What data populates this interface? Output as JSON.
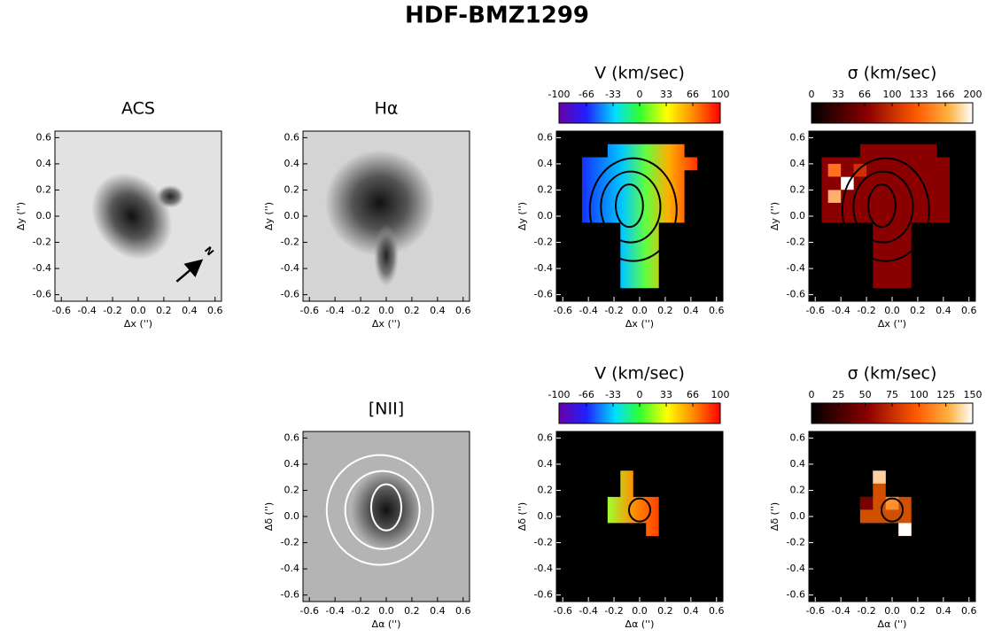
{
  "title": "HDF-BMZ1299",
  "chart_data": [
    {
      "type": "image",
      "title": "ACS",
      "colormap": "gray",
      "annotation": "N",
      "xlabel": "Δx ('')",
      "ylabel": "Δy ('')",
      "xlim": [
        -0.65,
        0.65
      ],
      "ylim": [
        -0.65,
        0.65
      ],
      "xticks": [
        -0.6,
        -0.4,
        -0.2,
        {
          "value": 0,
          "label": "0.0"
        },
        0.2,
        0.4,
        0.6
      ],
      "yticks": [
        -0.6,
        -0.4,
        -0.2,
        {
          "value": 0,
          "label": "0.0"
        },
        0.2,
        0.4,
        0.6
      ]
    },
    {
      "type": "image",
      "title": "Hα",
      "colormap": "gray",
      "xlabel": "Δx ('')",
      "ylabel": "Δy ('')",
      "xlim": [
        -0.65,
        0.65
      ],
      "ylim": [
        -0.65,
        0.65
      ],
      "xticks": [
        -0.6,
        -0.4,
        -0.2,
        {
          "value": 0,
          "label": "0.0"
        },
        0.2,
        0.4,
        0.6
      ],
      "yticks": [
        -0.6,
        -0.4,
        -0.2,
        {
          "value": 0,
          "label": "0.0"
        },
        0.2,
        0.4,
        0.6
      ]
    },
    {
      "type": "image",
      "title": "V (km/sec)",
      "colormap": "rainbow",
      "xlabel": "Δx ('')",
      "ylabel": "Δy ('')",
      "xlim": [
        -0.65,
        0.65
      ],
      "ylim": [
        -0.65,
        0.65
      ],
      "xticks": [
        -0.6,
        -0.4,
        -0.2,
        {
          "value": 0,
          "label": "0.0"
        },
        0.2,
        0.4,
        0.6
      ],
      "yticks": [
        -0.6,
        -0.4,
        -0.2,
        {
          "value": 0,
          "label": "0.0"
        },
        0.2,
        0.4,
        0.6
      ],
      "clim": [
        -100,
        100
      ],
      "cticks": [
        -100,
        -66,
        -33,
        0,
        33,
        66,
        100
      ]
    },
    {
      "type": "image",
      "title": "σ (km/sec)",
      "colormap": "hot",
      "xlabel": "Δx ('')",
      "ylabel": "Δy ('')",
      "xlim": [
        -0.65,
        0.65
      ],
      "ylim": [
        -0.65,
        0.65
      ],
      "xticks": [
        -0.6,
        -0.4,
        -0.2,
        {
          "value": 0,
          "label": "0.0"
        },
        0.2,
        0.4,
        0.6
      ],
      "yticks": [
        -0.6,
        -0.4,
        -0.2,
        {
          "value": 0,
          "label": "0.0"
        },
        0.2,
        0.4,
        0.6
      ],
      "clim": [
        0,
        200
      ],
      "cticks": [
        0,
        33,
        66,
        100,
        133,
        166,
        200
      ]
    },
    {
      "type": "image",
      "title": "[NII]",
      "colormap": "gray",
      "xlabel": "Δα ('')",
      "ylabel": "Δδ ('')",
      "xlim": [
        -0.65,
        0.65
      ],
      "ylim": [
        -0.65,
        0.65
      ],
      "xticks": [
        -0.6,
        -0.4,
        -0.2,
        {
          "value": 0,
          "label": "0.0"
        },
        0.2,
        0.4,
        0.6
      ],
      "yticks": [
        -0.6,
        -0.4,
        -0.2,
        {
          "value": 0,
          "label": "0.0"
        },
        0.2,
        0.4,
        0.6
      ]
    },
    {
      "type": "image",
      "title": "V (km/sec)",
      "colormap": "rainbow",
      "xlabel": "Δα ('')",
      "ylabel": "Δδ ('')",
      "xlim": [
        -0.65,
        0.65
      ],
      "ylim": [
        -0.65,
        0.65
      ],
      "xticks": [
        -0.6,
        -0.4,
        -0.2,
        {
          "value": 0,
          "label": "0.0"
        },
        0.2,
        0.4,
        0.6
      ],
      "yticks": [
        -0.6,
        -0.4,
        -0.2,
        {
          "value": 0,
          "label": "0.0"
        },
        0.2,
        0.4,
        0.6
      ],
      "clim": [
        -100,
        100
      ],
      "cticks": [
        -100,
        -66,
        -33,
        0,
        33,
        66,
        100
      ]
    },
    {
      "type": "image",
      "title": "σ (km/sec)",
      "colormap": "hot",
      "xlabel": "Δα ('')",
      "ylabel": "Δδ ('')",
      "xlim": [
        -0.65,
        0.65
      ],
      "ylim": [
        -0.65,
        0.65
      ],
      "xticks": [
        -0.6,
        -0.4,
        -0.2,
        {
          "value": 0,
          "label": "0.0"
        },
        0.2,
        0.4,
        0.6
      ],
      "yticks": [
        -0.6,
        -0.4,
        -0.2,
        {
          "value": 0,
          "label": "0.0"
        },
        0.2,
        0.4,
        0.6
      ],
      "clim": [
        0,
        150
      ],
      "cticks": [
        0,
        25,
        50,
        75,
        100,
        125,
        150
      ]
    }
  ]
}
